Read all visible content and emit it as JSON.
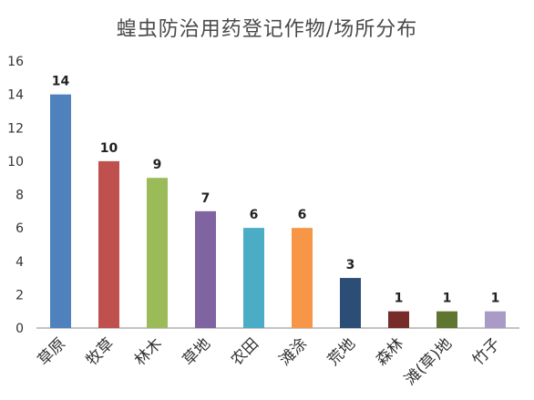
{
  "chart_data": {
    "type": "bar",
    "title": "蝗虫防治用药登记作物/场所分布",
    "xlabel": "",
    "ylabel": "",
    "categories": [
      "草原",
      "牧草",
      "林木",
      "草地",
      "农田",
      "滩涂",
      "荒地",
      "森林",
      "滩(草)地",
      "竹子"
    ],
    "values": [
      14,
      10,
      9,
      7,
      6,
      6,
      3,
      1,
      1,
      1
    ],
    "colors": [
      "#4f81bd",
      "#c0504d",
      "#9bbb59",
      "#8064a2",
      "#4bacc6",
      "#f79646",
      "#2c4d75",
      "#772c2a",
      "#5f7530",
      "#a99bc6"
    ],
    "ylim": [
      0,
      16
    ],
    "yticks": [
      0,
      2,
      4,
      6,
      8,
      10,
      12,
      14,
      16
    ],
    "grid": false,
    "legend": "none",
    "data_labels": true
  }
}
